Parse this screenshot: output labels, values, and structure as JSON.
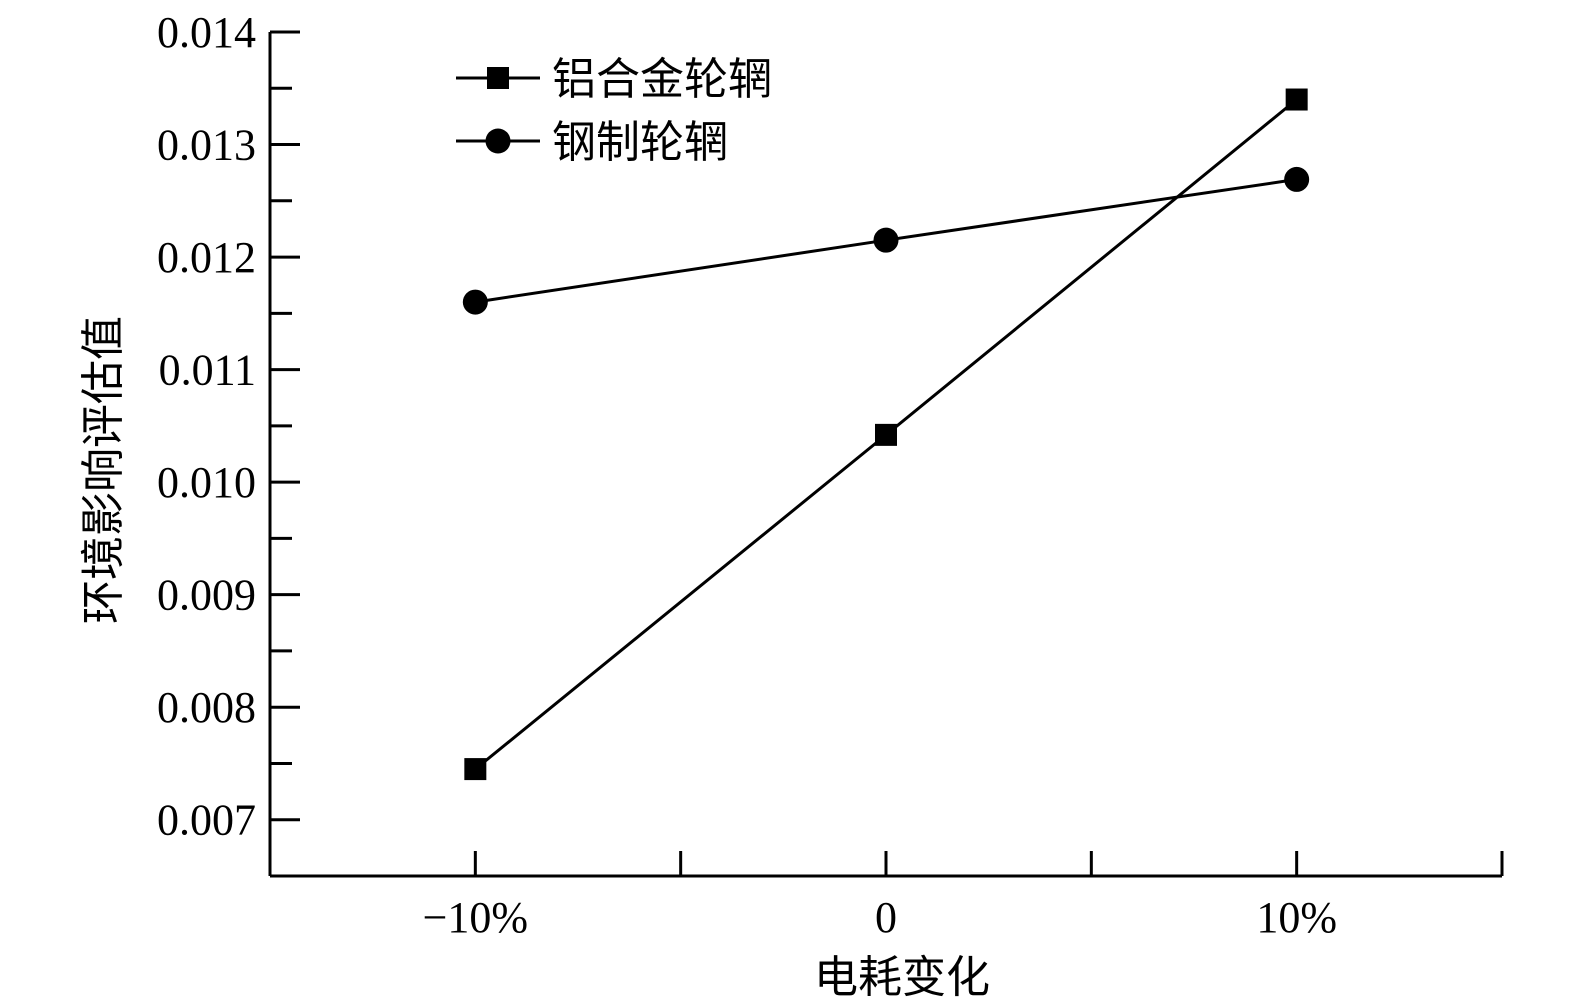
{
  "chart_data": {
    "type": "line",
    "categories": [
      "−10%",
      "0",
      "10%"
    ],
    "xlabel": "电耗变化",
    "ylabel": "环境影响评估值",
    "ylim": [
      0.0065,
      0.014
    ],
    "y_ticks": [
      "0.007",
      "0.008",
      "0.009",
      "0.010",
      "0.011",
      "0.012",
      "0.013",
      "0.014"
    ],
    "y_minor_step": 0.0005,
    "x_minor_ticks": [
      -5,
      5
    ],
    "grid": false,
    "legend_position": "top-left",
    "series": [
      {
        "name": "铝合金轮辋",
        "marker": "square",
        "values": [
          0.00745,
          0.01042,
          0.0134
        ]
      },
      {
        "name": "钢制轮辋",
        "marker": "circle",
        "values": [
          0.0116,
          0.01215,
          0.01269
        ]
      }
    ],
    "colors": {
      "line": "#000000",
      "background": "#ffffff"
    }
  }
}
